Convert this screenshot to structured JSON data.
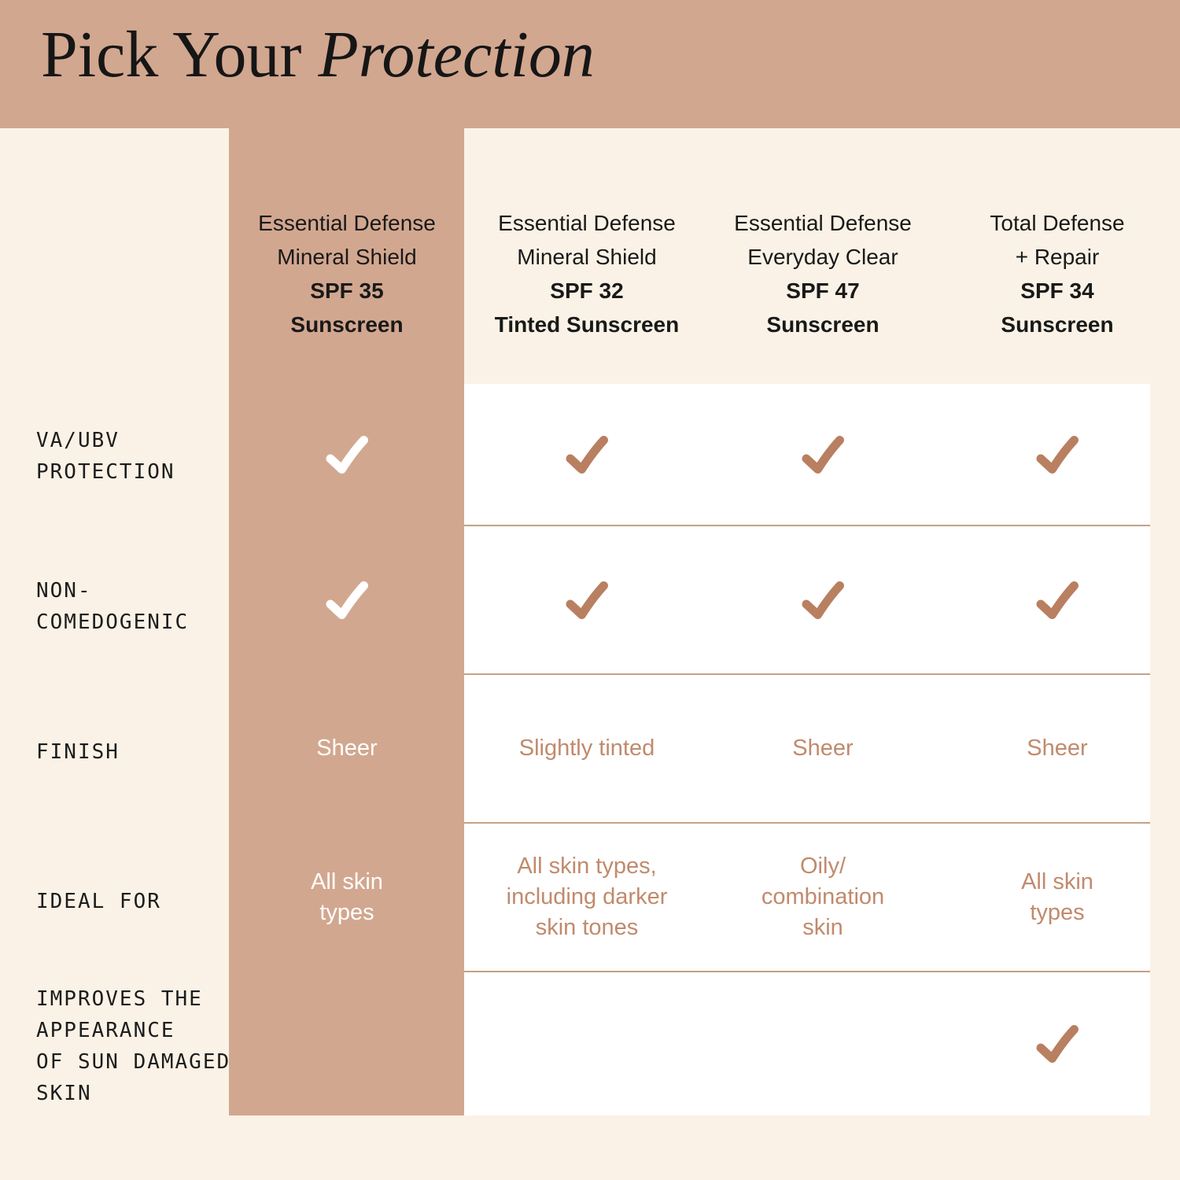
{
  "title": {
    "regular": "Pick Your ",
    "italic": "Protection"
  },
  "products": [
    {
      "line1": "Essential Defense",
      "line2": "Mineral Shield",
      "spf": "SPF 35",
      "form": "Sunscreen",
      "highlighted": true
    },
    {
      "line1": "Essential Defense",
      "line2": "Mineral Shield",
      "spf": "SPF 32",
      "form": "Tinted Sunscreen",
      "highlighted": false
    },
    {
      "line1": "Essential Defense",
      "line2": "Everyday Clear",
      "spf": "SPF 47",
      "form": "Sunscreen",
      "highlighted": false
    },
    {
      "line1": "Total Defense",
      "line2": "+ Repair",
      "spf": "SPF 34",
      "form": "Sunscreen",
      "highlighted": false
    }
  ],
  "rows": [
    {
      "label": "VA/UBV\nPROTECTION",
      "values": [
        "check",
        "check",
        "check",
        "check"
      ]
    },
    {
      "label": "NON-\nCOMEDOGENIC",
      "values": [
        "check",
        "check",
        "check",
        "check"
      ]
    },
    {
      "label": "FINISH",
      "values": [
        "Sheer",
        "Slightly tinted",
        "Sheer",
        "Sheer"
      ]
    },
    {
      "label": "IDEAL FOR",
      "values": [
        "All skin\ntypes",
        "All skin types,\nincluding darker\nskin tones",
        "Oily/\ncombination\nskin",
        "All skin\ntypes"
      ]
    },
    {
      "label": "IMPROVES THE\nAPPEARANCE\nOF SUN DAMAGED\nSKIN",
      "values": [
        "",
        "",
        "",
        "check"
      ]
    }
  ],
  "colors": {
    "band": "#d2a78f",
    "background": "#faf2e6",
    "cell_background": "#ffffff",
    "check": "#b97f61",
    "check_on_highlight": "#ffffff",
    "value_text": "#c18a6c",
    "separator": "#c5a285",
    "heading_text": "#191919"
  }
}
